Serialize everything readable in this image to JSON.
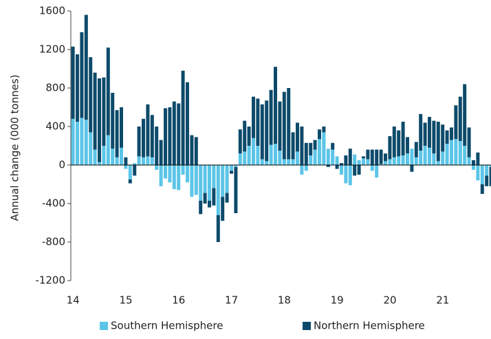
{
  "chart_data": {
    "type": "bar",
    "stacked": true,
    "y_label": "Annual change (000 tonnes)",
    "categories": [
      "14",
      null,
      null,
      null,
      null,
      null,
      null,
      null,
      null,
      null,
      null,
      null,
      "15",
      null,
      null,
      null,
      null,
      null,
      null,
      null,
      null,
      null,
      null,
      null,
      "16",
      null,
      null,
      null,
      null,
      null,
      null,
      null,
      null,
      null,
      null,
      null,
      "17",
      null,
      null,
      null,
      null,
      null,
      null,
      null,
      null,
      null,
      null,
      null,
      "18",
      null,
      null,
      null,
      null,
      null,
      null,
      null,
      null,
      null,
      null,
      null,
      "19",
      null,
      null,
      null,
      null,
      null,
      null,
      null,
      null,
      null,
      null,
      null,
      "20",
      null,
      null,
      null,
      null,
      null,
      null,
      null,
      null,
      null,
      null,
      null,
      "21",
      null,
      null,
      null,
      null,
      null,
      null,
      null,
      null,
      null,
      null,
      null
    ],
    "series": [
      {
        "name": "Southern Hemisphere",
        "color": "#5bc5e8",
        "values": [
          480,
          450,
          490,
          470,
          340,
          160,
          30,
          200,
          310,
          170,
          80,
          180,
          -40,
          -150,
          20,
          90,
          80,
          90,
          80,
          -50,
          -220,
          -140,
          -180,
          -250,
          -260,
          -100,
          -180,
          -330,
          -310,
          -370,
          -290,
          -370,
          -240,
          -520,
          -330,
          -290,
          -60,
          -20,
          120,
          140,
          200,
          280,
          200,
          60,
          40,
          210,
          220,
          150,
          60,
          60,
          60,
          140,
          -100,
          -60,
          100,
          160,
          270,
          340,
          170,
          160,
          90,
          -100,
          -190,
          -210,
          110,
          50,
          70,
          60,
          -60,
          -130,
          10,
          40,
          60,
          80,
          90,
          100,
          120,
          170,
          80,
          150,
          200,
          180,
          120,
          40,
          140,
          220,
          260,
          270,
          250,
          200,
          80,
          -50,
          -160,
          -200,
          -110,
          -20
        ]
      },
      {
        "name": "Northern Hemisphere",
        "color": "#0d4a6a",
        "values": [
          750,
          700,
          890,
          1090,
          780,
          800,
          870,
          710,
          910,
          580,
          490,
          420,
          80,
          -40,
          -110,
          310,
          400,
          540,
          440,
          400,
          260,
          590,
          600,
          660,
          640,
          980,
          860,
          310,
          290,
          -140,
          -110,
          -70,
          -180,
          -280,
          -250,
          -100,
          -30,
          -480,
          250,
          320,
          200,
          430,
          490,
          570,
          630,
          570,
          800,
          510,
          700,
          740,
          280,
          300,
          400,
          230,
          130,
          100,
          100,
          60,
          -20,
          70,
          -40,
          20,
          100,
          170,
          -110,
          -100,
          20,
          100,
          160,
          160,
          150,
          80,
          240,
          320,
          270,
          350,
          170,
          -70,
          160,
          380,
          240,
          320,
          340,
          410,
          280,
          140,
          130,
          350,
          460,
          640,
          310,
          50,
          130,
          -100,
          -110,
          -200
        ]
      }
    ],
    "ylim": [
      -1200,
      1600
    ],
    "yticks": [
      -1200,
      -800,
      -400,
      0,
      400,
      800,
      1200,
      1600
    ],
    "grid": false,
    "legend": "bottom"
  }
}
